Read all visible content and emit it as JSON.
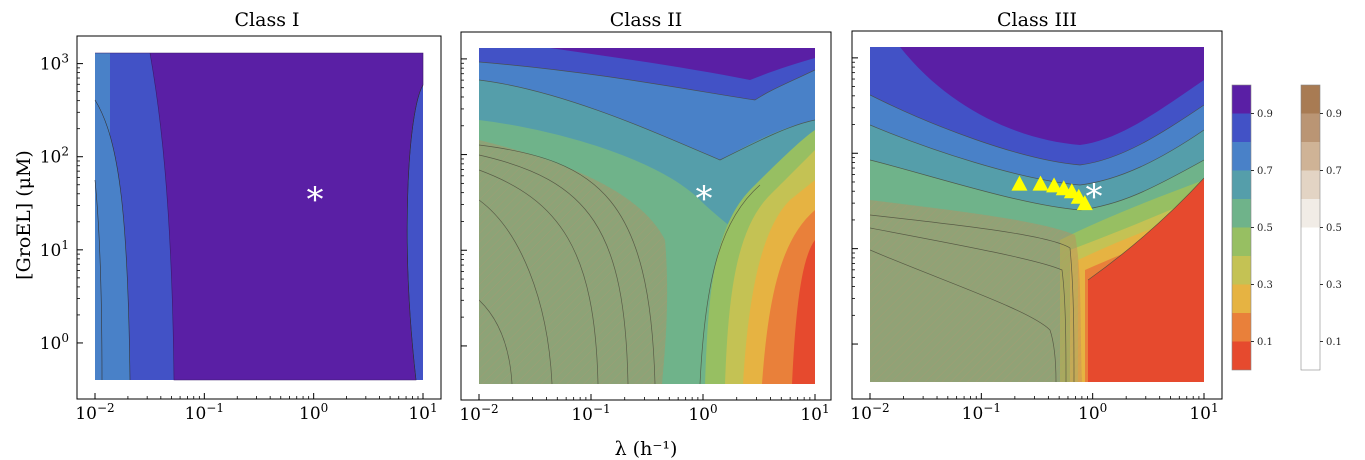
{
  "chart_data": [
    {
      "type": "heatmap",
      "title": "Class I",
      "x_scale": "log",
      "y_scale": "log",
      "xlim": [
        0.01,
        10
      ],
      "ylim": [
        0.4,
        1300
      ],
      "x_ticks": [
        "10^-2",
        "10^-1",
        "10^0",
        "10^1"
      ],
      "y_ticks": [
        "10^0",
        "10^1",
        "10^2",
        "10^3"
      ],
      "contour_levels": [
        0.1,
        0.2,
        0.3,
        0.4,
        0.5,
        0.6,
        0.7,
        0.8,
        0.9
      ],
      "marker": {
        "symbol": "*",
        "x": 1.0,
        "y": 35
      }
    },
    {
      "type": "heatmap",
      "title": "Class II",
      "x_scale": "log",
      "y_scale": "log",
      "xlim": [
        0.01,
        10
      ],
      "ylim": [
        0.4,
        1300
      ],
      "x_ticks": [
        "10^-2",
        "10^-1",
        "10^0",
        "10^1"
      ],
      "contour_levels": [
        0.1,
        0.2,
        0.3,
        0.4,
        0.5,
        0.6,
        0.7,
        0.8,
        0.9
      ],
      "marker": {
        "symbol": "*",
        "x": 1.0,
        "y": 35
      }
    },
    {
      "type": "heatmap",
      "title": "Class III",
      "x_scale": "log",
      "y_scale": "log",
      "xlim": [
        0.01,
        10
      ],
      "ylim": [
        0.4,
        1300
      ],
      "x_ticks": [
        "10^-2",
        "10^-1",
        "10^0",
        "10^1"
      ],
      "contour_levels": [
        0.1,
        0.2,
        0.3,
        0.4,
        0.5,
        0.6,
        0.7,
        0.8,
        0.9
      ],
      "marker": {
        "symbol": "*",
        "x": 1.05,
        "y": 35
      },
      "triangles": [
        {
          "x": 0.22,
          "y": 48
        },
        {
          "x": 0.34,
          "y": 48
        },
        {
          "x": 0.45,
          "y": 46
        },
        {
          "x": 0.55,
          "y": 43
        },
        {
          "x": 0.65,
          "y": 40
        },
        {
          "x": 0.75,
          "y": 35
        },
        {
          "x": 0.85,
          "y": 30
        }
      ]
    }
  ],
  "shared": {
    "ylabel": "[GroEL] (μM)",
    "xlabel": "λ (h⁻¹)"
  },
  "colorbars": [
    {
      "name": "fraction",
      "labels": [
        "0.9",
        "0.7",
        "0.5",
        "0.3",
        "0.1"
      ],
      "colors": [
        "#e64a2e",
        "#e9803a",
        "#e6b342",
        "#c4c254",
        "#97bf62",
        "#6fb38a",
        "#559eaa",
        "#4981c8",
        "#4252c6",
        "#5a1fa5"
      ]
    },
    {
      "name": "overlay",
      "labels": [
        "0.9",
        "0.7",
        "0.5",
        "0.3",
        "0.1"
      ],
      "colors": [
        "#ffffff",
        "#ffffff",
        "#ffffff",
        "#ffffff",
        "#ffffff",
        "#f1ece6",
        "#e3d4c4",
        "#cfb396",
        "#ba9574",
        "#a87b53"
      ]
    }
  ]
}
